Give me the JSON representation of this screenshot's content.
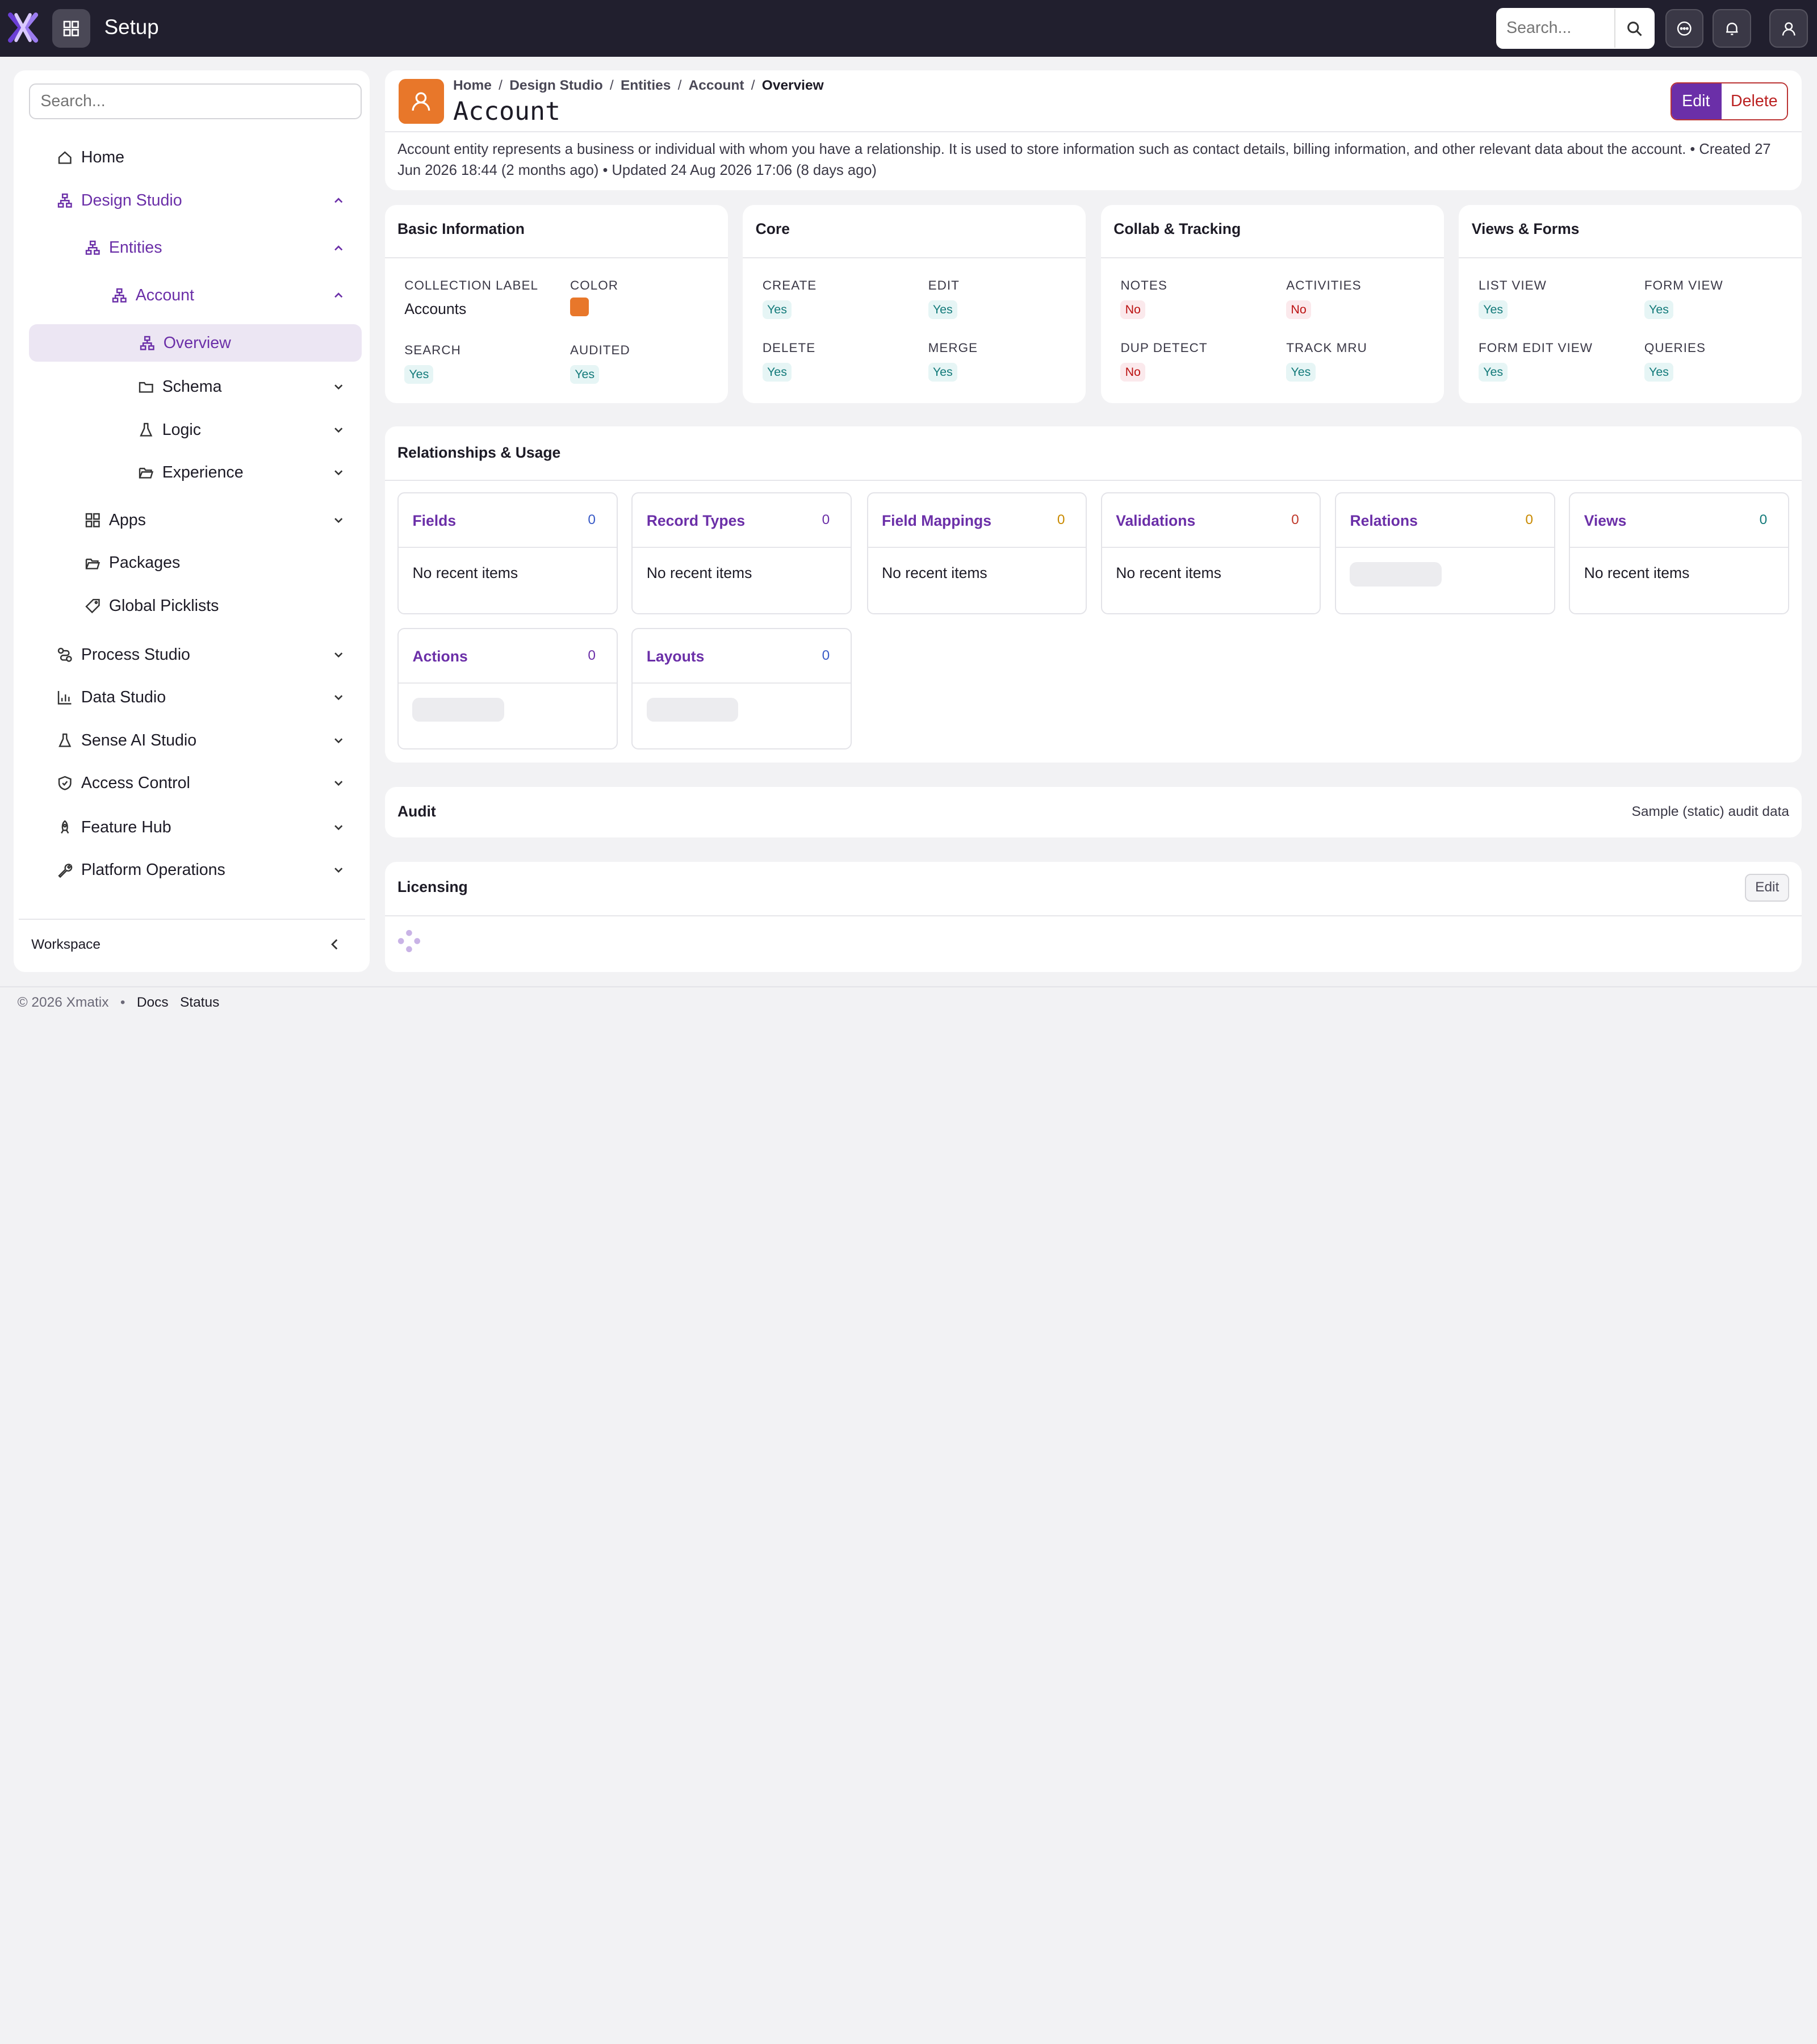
{
  "topbar": {
    "app_title": "Setup",
    "search_placeholder": "Search..."
  },
  "sidebar": {
    "search_placeholder": "Search...",
    "items": {
      "home": "Home",
      "design_studio": "Design Studio",
      "entities": "Entities",
      "account": "Account",
      "overview": "Overview",
      "schema": "Schema",
      "logic": "Logic",
      "experience": "Experience",
      "apps": "Apps",
      "packages": "Packages",
      "global_picklists": "Global Picklists",
      "process_studio": "Process Studio",
      "data_studio": "Data Studio",
      "sense_ai_studio": "Sense AI Studio",
      "access_control": "Access Control",
      "feature_hub": "Feature Hub",
      "platform_operations": "Platform Operations"
    },
    "workspace_label": "Workspace"
  },
  "header": {
    "breadcrumbs": [
      "Home",
      "Design Studio",
      "Entities",
      "Account",
      "Overview"
    ],
    "separator": "/",
    "title": "Account",
    "edit_label": "Edit",
    "delete_label": "Delete",
    "description": "Account entity represents a business or individual with whom you have a relationship. It is used to store information such as contact details, billing information, and other relevant data about the account. • Created 27 Jun 2026 18:44 (2 months ago) • Updated 24 Aug 2026 17:06 (8 days ago)"
  },
  "basic_info": {
    "title": "Basic Information",
    "collection_label_lbl": "COLLECTION LABEL",
    "collection_label_val": "Accounts",
    "color_lbl": "COLOR",
    "color_val": "#e8772a",
    "search_lbl": "SEARCH",
    "search_val": "Yes",
    "audited_lbl": "AUDITED",
    "audited_val": "Yes"
  },
  "core": {
    "title": "Core",
    "create_lbl": "CREATE",
    "create_val": "Yes",
    "edit_lbl": "EDIT",
    "edit_val": "Yes",
    "delete_lbl": "DELETE",
    "delete_val": "Yes",
    "merge_lbl": "MERGE",
    "merge_val": "Yes"
  },
  "collab": {
    "title": "Collab & Tracking",
    "notes_lbl": "NOTES",
    "notes_val": "No",
    "activities_lbl": "ACTIVITIES",
    "activities_val": "No",
    "dup_lbl": "DUP DETECT",
    "dup_val": "No",
    "mru_lbl": "TRACK MRU",
    "mru_val": "Yes"
  },
  "views": {
    "title": "Views & Forms",
    "list_lbl": "LIST VIEW",
    "list_val": "Yes",
    "form_lbl": "FORM VIEW",
    "form_val": "Yes",
    "formedit_lbl": "FORM EDIT VIEW",
    "formedit_val": "Yes",
    "queries_lbl": "QUERIES",
    "queries_val": "Yes"
  },
  "relationships": {
    "title": "Relationships & Usage",
    "empty_text": "No recent items",
    "tiles": [
      {
        "label": "Fields",
        "count": "0",
        "color": "#3a5bc7"
      },
      {
        "label": "Record Types",
        "count": "0",
        "color": "#6b2fa8"
      },
      {
        "label": "Field Mappings",
        "count": "0",
        "color": "#c98a00"
      },
      {
        "label": "Validations",
        "count": "0",
        "color": "#c0392b"
      },
      {
        "label": "Relations",
        "count": "0",
        "color": "#c98a00"
      },
      {
        "label": "Views",
        "count": "0",
        "color": "#137a7a"
      },
      {
        "label": "Actions",
        "count": "0",
        "color": "#6b2fa8"
      },
      {
        "label": "Layouts",
        "count": "0",
        "color": "#3a5bc7"
      }
    ]
  },
  "audit": {
    "title": "Audit",
    "note": "Sample (static) audit data"
  },
  "licensing": {
    "title": "Licensing",
    "edit_label": "Edit"
  },
  "footer": {
    "copyright": "© 2026 Xmatix",
    "dot": "•",
    "docs": "Docs",
    "status": "Status"
  },
  "colors": {
    "brand_purple": "#6b2fa8",
    "topbar": "#211f2e",
    "entity_orange": "#e8772a"
  }
}
